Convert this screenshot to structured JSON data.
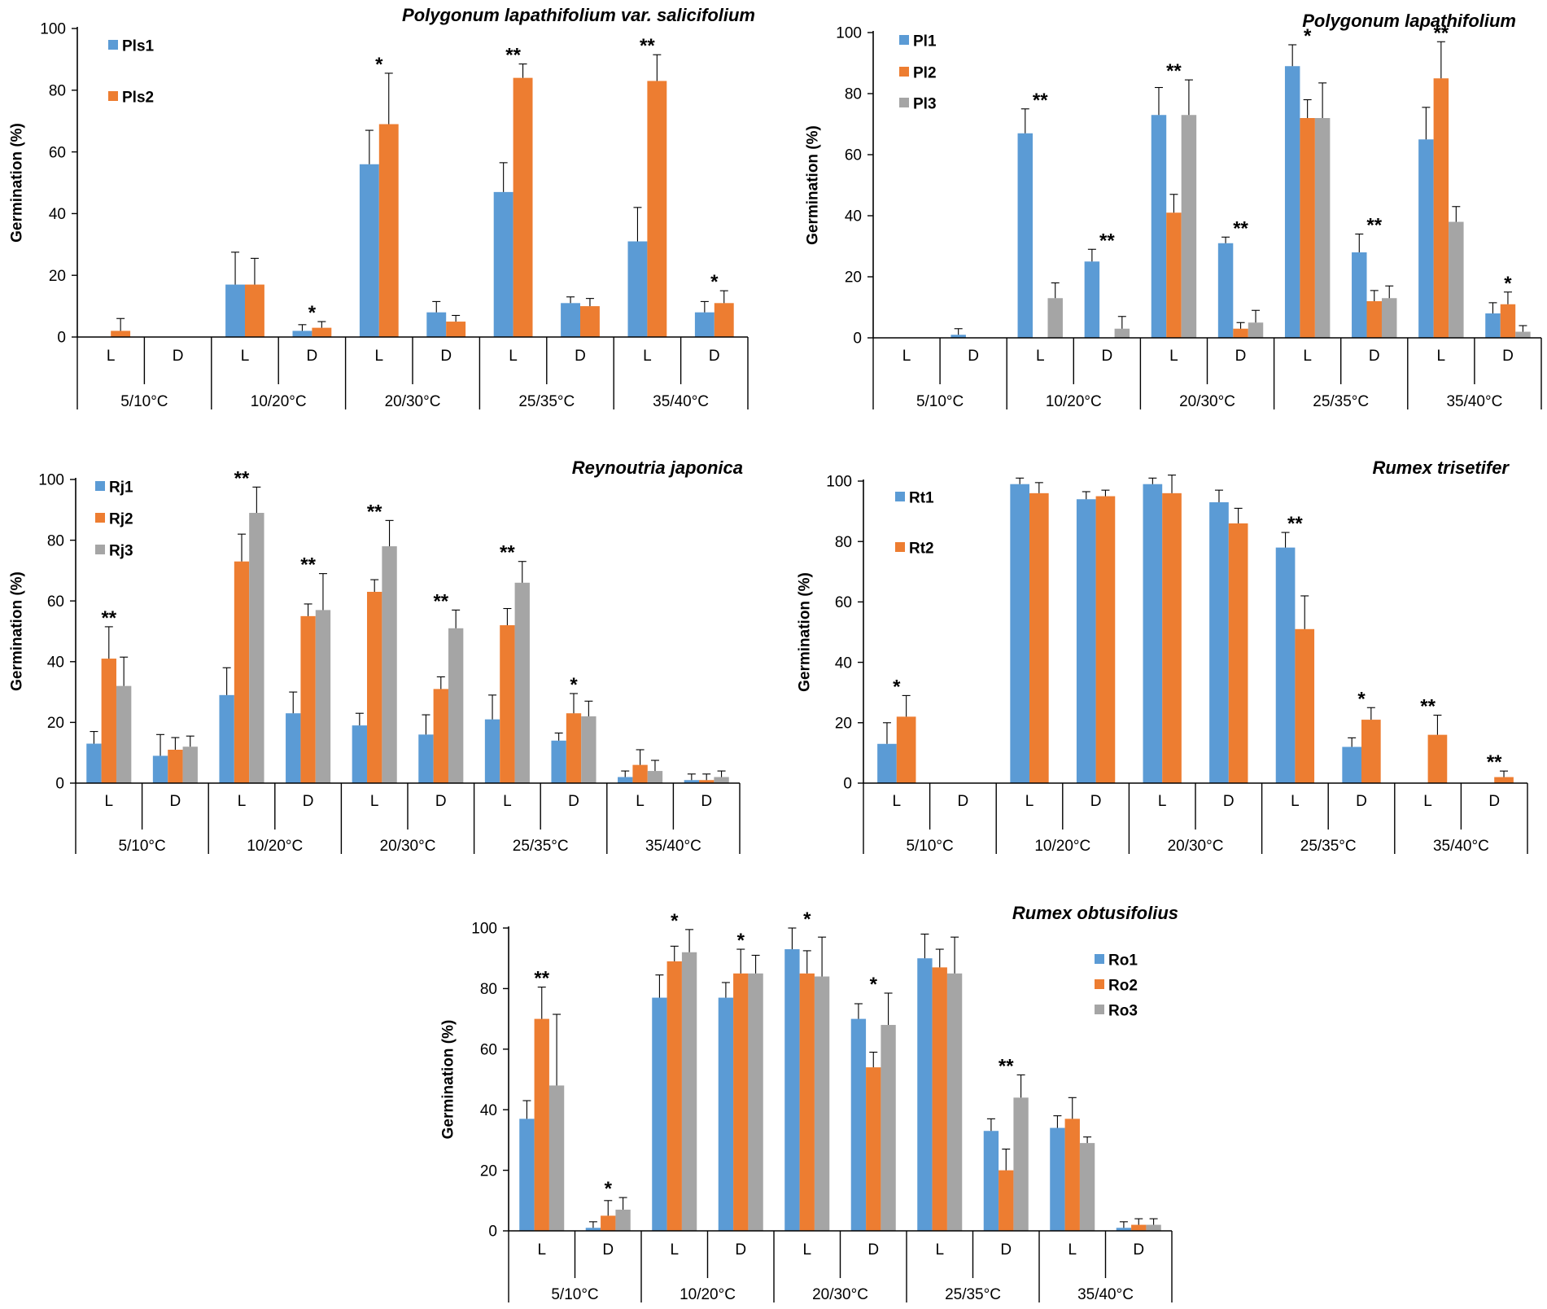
{
  "colors": {
    "series1": "#5B9BD5",
    "series2": "#ED7D31",
    "series3": "#A5A5A5",
    "axis": "#000000"
  },
  "chart_data": [
    {
      "type": "bar",
      "title": "Polygonum lapathifolium var. salicifolium",
      "ylabel": "Germination (%)",
      "ylim": [
        0,
        100
      ],
      "yticks": [
        "0",
        "20",
        "40",
        "60",
        "80",
        "100"
      ],
      "temperatures": [
        "5/10°C",
        "10/20°C",
        "20/30°C",
        "25/35°C",
        "35/40°C"
      ],
      "conditions": [
        "L",
        "D",
        "L",
        "D",
        "L",
        "D",
        "L",
        "D",
        "L",
        "D"
      ],
      "legend_position": "top-left",
      "series": [
        {
          "name": "Pls1",
          "values": [
            0,
            0,
            17,
            2,
            56,
            8,
            47,
            11,
            31,
            8
          ],
          "errors": [
            0,
            0,
            10.5,
            2,
            11,
            3.5,
            9.5,
            2,
            11,
            3.5
          ]
        },
        {
          "name": "Pls2",
          "values": [
            2,
            0,
            17,
            3,
            69,
            5,
            84,
            10,
            83,
            11
          ],
          "errors": [
            4,
            0,
            8.5,
            2,
            16.5,
            2,
            4.5,
            2.5,
            8.5,
            4
          ]
        }
      ],
      "significance": [
        "",
        "",
        "",
        "*",
        "*",
        "",
        "**",
        "",
        "**",
        "*"
      ]
    },
    {
      "type": "bar",
      "title": "Polygonum lapathifolium",
      "ylabel": "Germination (%)",
      "ylim": [
        0,
        100
      ],
      "yticks": [
        "0",
        "20",
        "40",
        "60",
        "80",
        "100"
      ],
      "temperatures": [
        "5/10°C",
        "10/20°C",
        "20/30°C",
        "25/35°C",
        "35/40°C"
      ],
      "conditions": [
        "L",
        "D",
        "L",
        "D",
        "L",
        "D",
        "L",
        "D",
        "L",
        "D"
      ],
      "legend_position": "top-left",
      "series": [
        {
          "name": "Pl1",
          "values": [
            0,
            1,
            67,
            25,
            73,
            31,
            89,
            28,
            65,
            8
          ],
          "errors": [
            0,
            2,
            8,
            4,
            9,
            2,
            7,
            6,
            10.5,
            3.5
          ]
        },
        {
          "name": "Pl2",
          "values": [
            0,
            0,
            0,
            0,
            41,
            3,
            72,
            12,
            85,
            11
          ],
          "errors": [
            0,
            0,
            0,
            0,
            6,
            2,
            6,
            3.5,
            12,
            4
          ]
        },
        {
          "name": "Pl3",
          "values": [
            0,
            0,
            13,
            3,
            73,
            5,
            72,
            13,
            38,
            2
          ],
          "errors": [
            0,
            0,
            5,
            4,
            11.5,
            4,
            11.5,
            4,
            5,
            2
          ]
        }
      ],
      "significance": [
        "",
        "",
        "**",
        "**",
        "**",
        "**",
        "*",
        "**",
        "**",
        "*"
      ]
    },
    {
      "type": "bar",
      "title": "Reynoutria japonica",
      "ylabel": "Germination (%)",
      "ylim": [
        0,
        100
      ],
      "yticks": [
        "0",
        "20",
        "40",
        "60",
        "80",
        "100"
      ],
      "temperatures": [
        "5/10°C",
        "10/20°C",
        "20/30°C",
        "25/35°C",
        "35/40°C"
      ],
      "conditions": [
        "L",
        "D",
        "L",
        "D",
        "L",
        "D",
        "L",
        "D",
        "L",
        "D"
      ],
      "legend_position": "top-left",
      "series": [
        {
          "name": "Rj1",
          "values": [
            13,
            9,
            29,
            23,
            19,
            16,
            21,
            14,
            2,
            1
          ],
          "errors": [
            4,
            7,
            9,
            7,
            4,
            6.5,
            8,
            2.5,
            2,
            2
          ]
        },
        {
          "name": "Rj2",
          "values": [
            41,
            11,
            73,
            55,
            63,
            31,
            52,
            23,
            6,
            1
          ],
          "errors": [
            10.5,
            4,
            9,
            4,
            4,
            4,
            5.5,
            6.5,
            5,
            2
          ]
        },
        {
          "name": "Rj3",
          "values": [
            32,
            12,
            89,
            57,
            78,
            51,
            66,
            22,
            4,
            2
          ],
          "errors": [
            9.5,
            3.5,
            8.5,
            12,
            8.5,
            6,
            7,
            5,
            3.5,
            2
          ]
        }
      ],
      "significance": [
        "**",
        "",
        "**",
        "**",
        "**",
        "**",
        "**",
        "*",
        "",
        ""
      ]
    },
    {
      "type": "bar",
      "title": "Rumex trisetifer",
      "ylabel": "Germination (%)",
      "ylim": [
        0,
        100
      ],
      "yticks": [
        "0",
        "20",
        "40",
        "60",
        "80",
        "100"
      ],
      "temperatures": [
        "5/10°C",
        "10/20°C",
        "20/30°C",
        "25/35°C",
        "35/40°C"
      ],
      "conditions": [
        "L",
        "D",
        "L",
        "D",
        "L",
        "D",
        "L",
        "D",
        "L",
        "D"
      ],
      "legend_position": "top-left",
      "series": [
        {
          "name": "Rt1",
          "values": [
            13,
            0,
            99,
            94,
            99,
            93,
            78,
            12,
            0,
            0
          ],
          "errors": [
            7,
            0,
            2,
            2.5,
            2,
            4,
            5,
            3,
            0,
            0
          ]
        },
        {
          "name": "Rt2",
          "values": [
            22,
            0,
            96,
            95,
            96,
            86,
            51,
            21,
            16,
            2
          ],
          "errors": [
            7,
            0,
            3.5,
            2,
            6,
            5,
            11,
            4,
            6.5,
            2
          ]
        }
      ],
      "significance": [
        "*",
        "",
        "",
        "",
        "",
        "",
        "**",
        "*",
        "**",
        "**"
      ]
    },
    {
      "type": "bar",
      "title": "Rumex obtusifolius",
      "ylabel": "Germination (%)",
      "ylim": [
        0,
        100
      ],
      "yticks": [
        "0",
        "20",
        "40",
        "60",
        "80",
        "100"
      ],
      "temperatures": [
        "5/10°C",
        "10/20°C",
        "20/30°C",
        "25/35°C",
        "35/40°C"
      ],
      "conditions": [
        "L",
        "D",
        "L",
        "D",
        "L",
        "D",
        "L",
        "D",
        "L",
        "D"
      ],
      "legend_position": "top-right",
      "series": [
        {
          "name": "Ro1",
          "values": [
            37,
            1,
            77,
            77,
            93,
            70,
            90,
            33,
            34,
            1
          ],
          "errors": [
            6,
            2,
            7.5,
            5,
            7,
            5,
            8,
            4,
            4,
            2
          ]
        },
        {
          "name": "Ro2",
          "values": [
            70,
            5,
            89,
            85,
            85,
            54,
            87,
            20,
            37,
            2
          ],
          "errors": [
            10.5,
            5,
            5,
            8,
            7.5,
            5,
            6,
            7,
            7,
            2
          ]
        },
        {
          "name": "Ro3",
          "values": [
            48,
            7,
            92,
            85,
            84,
            68,
            85,
            44,
            29,
            2
          ],
          "errors": [
            23.5,
            4,
            7.5,
            6,
            13,
            10.5,
            12,
            7.5,
            2,
            2
          ]
        }
      ],
      "significance": [
        "**",
        "*",
        "*",
        "*",
        "*",
        "*",
        "",
        "**",
        "",
        ""
      ]
    }
  ]
}
